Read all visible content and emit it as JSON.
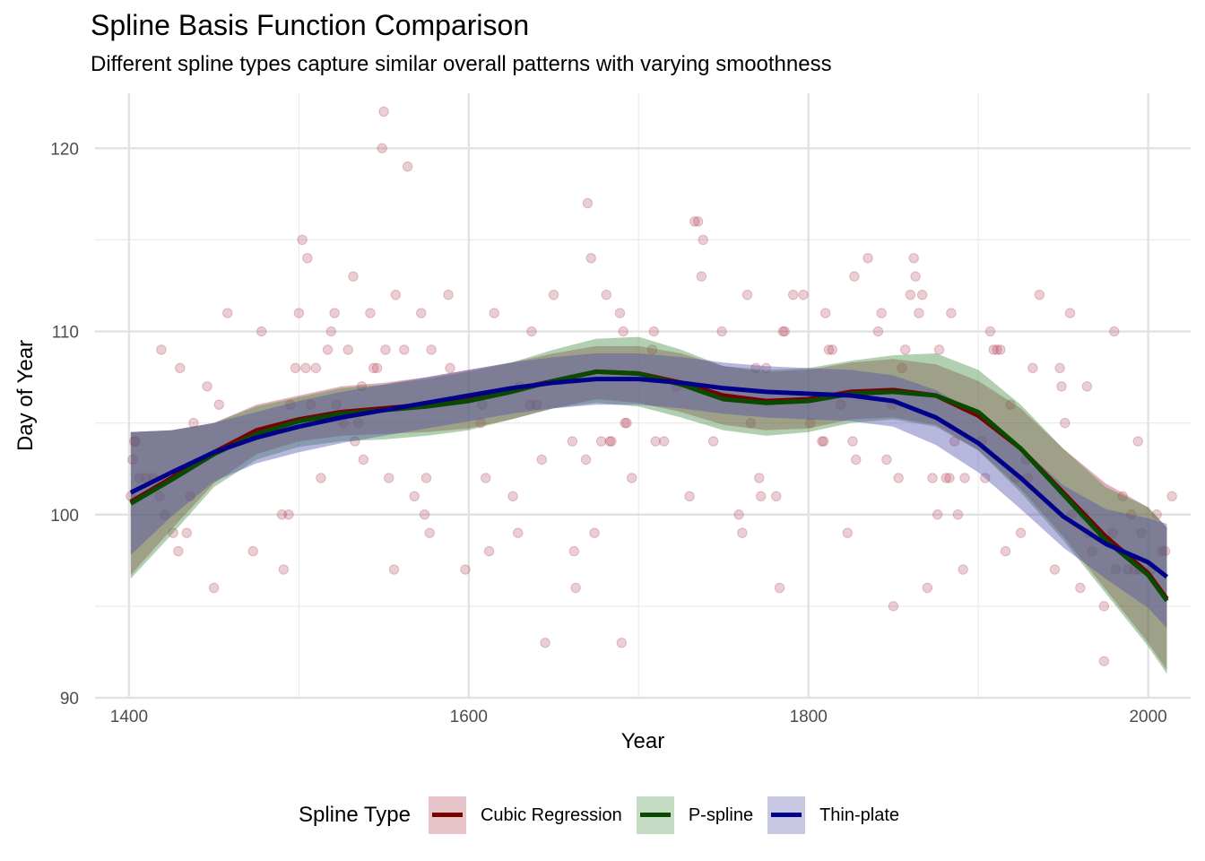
{
  "chart_data": {
    "type": "scatter",
    "title": "Spline Basis Function Comparison",
    "subtitle": "Different spline types capture similar overall patterns with varying smoothness",
    "xlabel": "Year",
    "ylabel": "Day of Year",
    "xlim": [
      1380,
      2025
    ],
    "ylim": [
      90,
      123
    ],
    "x_ticks": [
      1400,
      1600,
      1800,
      2000
    ],
    "y_ticks": [
      90,
      100,
      110,
      120
    ],
    "grid": true,
    "legend_position": "bottom",
    "legend_title": "Spline Type",
    "points_color": "#b03a50",
    "points": [
      [
        1401,
        101
      ],
      [
        1402,
        103
      ],
      [
        1403,
        104
      ],
      [
        1404,
        104
      ],
      [
        1406,
        102
      ],
      [
        1410,
        102
      ],
      [
        1414,
        102
      ],
      [
        1418,
        101
      ],
      [
        1419,
        109
      ],
      [
        1421,
        100
      ],
      [
        1426,
        99
      ],
      [
        1429,
        98
      ],
      [
        1430,
        108
      ],
      [
        1434,
        99
      ],
      [
        1436,
        101
      ],
      [
        1438,
        105
      ],
      [
        1446,
        107
      ],
      [
        1450,
        96
      ],
      [
        1453,
        106
      ],
      [
        1458,
        111
      ],
      [
        1473,
        98
      ],
      [
        1478,
        110
      ],
      [
        1490,
        100
      ],
      [
        1491,
        97
      ],
      [
        1494,
        100
      ],
      [
        1495,
        106
      ],
      [
        1498,
        108
      ],
      [
        1500,
        111
      ],
      [
        1502,
        115
      ],
      [
        1504,
        108
      ],
      [
        1505,
        114
      ],
      [
        1507,
        106
      ],
      [
        1510,
        108
      ],
      [
        1513,
        102
      ],
      [
        1517,
        109
      ],
      [
        1519,
        110
      ],
      [
        1521,
        111
      ],
      [
        1522,
        106
      ],
      [
        1526,
        105
      ],
      [
        1529,
        109
      ],
      [
        1532,
        113
      ],
      [
        1533,
        104
      ],
      [
        1535,
        105
      ],
      [
        1537,
        107
      ],
      [
        1538,
        103
      ],
      [
        1542,
        111
      ],
      [
        1544,
        108
      ],
      [
        1546,
        108
      ],
      [
        1549,
        120
      ],
      [
        1550,
        122
      ],
      [
        1551,
        109
      ],
      [
        1553,
        102
      ],
      [
        1556,
        97
      ],
      [
        1557,
        112
      ],
      [
        1562,
        109
      ],
      [
        1564,
        119
      ],
      [
        1568,
        101
      ],
      [
        1572,
        111
      ],
      [
        1574,
        100
      ],
      [
        1575,
        102
      ],
      [
        1577,
        99
      ],
      [
        1578,
        109
      ],
      [
        1588,
        112
      ],
      [
        1589,
        108
      ],
      [
        1598,
        97
      ],
      [
        1607,
        105
      ],
      [
        1608,
        106
      ],
      [
        1610,
        102
      ],
      [
        1612,
        98
      ],
      [
        1615,
        111
      ],
      [
        1626,
        101
      ],
      [
        1629,
        99
      ],
      [
        1630,
        107
      ],
      [
        1636,
        106
      ],
      [
        1637,
        110
      ],
      [
        1640,
        106
      ],
      [
        1643,
        103
      ],
      [
        1645,
        93
      ],
      [
        1650,
        112
      ],
      [
        1661,
        104
      ],
      [
        1662,
        98
      ],
      [
        1663,
        96
      ],
      [
        1669,
        103
      ],
      [
        1670,
        117
      ],
      [
        1672,
        114
      ],
      [
        1674,
        99
      ],
      [
        1678,
        104
      ],
      [
        1681,
        112
      ],
      [
        1683,
        104
      ],
      [
        1684,
        104
      ],
      [
        1689,
        111
      ],
      [
        1690,
        93
      ],
      [
        1691,
        110
      ],
      [
        1692,
        105
      ],
      [
        1693,
        105
      ],
      [
        1696,
        102
      ],
      [
        1708,
        109
      ],
      [
        1709,
        110
      ],
      [
        1710,
        104
      ],
      [
        1715,
        104
      ],
      [
        1722,
        107
      ],
      [
        1730,
        101
      ],
      [
        1733,
        116
      ],
      [
        1735,
        116
      ],
      [
        1737,
        113
      ],
      [
        1738,
        115
      ],
      [
        1744,
        104
      ],
      [
        1749,
        110
      ],
      [
        1759,
        100
      ],
      [
        1761,
        99
      ],
      [
        1764,
        112
      ],
      [
        1766,
        105
      ],
      [
        1769,
        108
      ],
      [
        1771,
        102
      ],
      [
        1772,
        101
      ],
      [
        1775,
        108
      ],
      [
        1781,
        101
      ],
      [
        1783,
        96
      ],
      [
        1785,
        110
      ],
      [
        1786,
        110
      ],
      [
        1791,
        112
      ],
      [
        1797,
        112
      ],
      [
        1801,
        105
      ],
      [
        1808,
        104
      ],
      [
        1809,
        104
      ],
      [
        1810,
        111
      ],
      [
        1812,
        109
      ],
      [
        1814,
        109
      ],
      [
        1819,
        106
      ],
      [
        1823,
        99
      ],
      [
        1826,
        104
      ],
      [
        1827,
        113
      ],
      [
        1828,
        103
      ],
      [
        1835,
        114
      ],
      [
        1841,
        110
      ],
      [
        1843,
        111
      ],
      [
        1846,
        103
      ],
      [
        1849,
        106
      ],
      [
        1850,
        95
      ],
      [
        1853,
        102
      ],
      [
        1855,
        108
      ],
      [
        1857,
        109
      ],
      [
        1860,
        112
      ],
      [
        1862,
        114
      ],
      [
        1863,
        113
      ],
      [
        1865,
        111
      ],
      [
        1867,
        112
      ],
      [
        1870,
        96
      ],
      [
        1873,
        102
      ],
      [
        1876,
        100
      ],
      [
        1877,
        109
      ],
      [
        1881,
        102
      ],
      [
        1883,
        102
      ],
      [
        1884,
        111
      ],
      [
        1886,
        104
      ],
      [
        1888,
        100
      ],
      [
        1891,
        97
      ],
      [
        1892,
        102
      ],
      [
        1902,
        104
      ],
      [
        1904,
        102
      ],
      [
        1907,
        110
      ],
      [
        1909,
        109
      ],
      [
        1911,
        109
      ],
      [
        1913,
        109
      ],
      [
        1916,
        98
      ],
      [
        1919,
        106
      ],
      [
        1922,
        102
      ],
      [
        1925,
        99
      ],
      [
        1928,
        103
      ],
      [
        1929,
        102
      ],
      [
        1932,
        108
      ],
      [
        1936,
        112
      ],
      [
        1945,
        97
      ],
      [
        1948,
        108
      ],
      [
        1949,
        107
      ],
      [
        1951,
        105
      ],
      [
        1954,
        111
      ],
      [
        1955,
        100
      ],
      [
        1960,
        96
      ],
      [
        1962,
        100
      ],
      [
        1964,
        107
      ],
      [
        1965,
        99
      ],
      [
        1967,
        98
      ],
      [
        1974,
        95
      ],
      [
        1974,
        92
      ],
      [
        1979,
        99
      ],
      [
        1980,
        110
      ],
      [
        1981,
        97
      ],
      [
        1985,
        101
      ],
      [
        1988,
        97
      ],
      [
        1990,
        100
      ],
      [
        1992,
        97
      ],
      [
        1994,
        104
      ],
      [
        1995,
        97
      ],
      [
        1996,
        99
      ],
      [
        2002,
        97
      ],
      [
        2005,
        100
      ],
      [
        2008,
        98
      ],
      [
        2010,
        98
      ],
      [
        2014,
        101
      ]
    ],
    "series": [
      {
        "name": "Cubic Regression",
        "color": "#7a0000",
        "fill": "#b03a50",
        "x": [
          1401,
          1425,
          1450,
          1475,
          1500,
          1525,
          1550,
          1575,
          1600,
          1625,
          1650,
          1675,
          1700,
          1725,
          1750,
          1775,
          1800,
          1825,
          1850,
          1875,
          1900,
          1925,
          1950,
          1975,
          2000,
          2011
        ],
        "fit": [
          100.7,
          102.0,
          103.4,
          104.6,
          105.2,
          105.6,
          105.8,
          106.0,
          106.3,
          106.8,
          107.3,
          107.8,
          107.7,
          107.2,
          106.5,
          106.2,
          106.3,
          106.7,
          106.8,
          106.5,
          105.4,
          103.6,
          101.2,
          98.8,
          96.8,
          95.4
        ],
        "lower": [
          96.7,
          99.2,
          101.7,
          103.3,
          104.0,
          104.3,
          104.4,
          104.5,
          104.7,
          105.2,
          105.8,
          106.3,
          106.1,
          105.6,
          104.9,
          104.6,
          104.7,
          105.2,
          105.3,
          104.9,
          103.5,
          101.4,
          98.8,
          95.9,
          93.0,
          91.5
        ],
        "upper": [
          104.5,
          104.6,
          105.0,
          106.0,
          106.5,
          107.0,
          107.2,
          107.5,
          107.9,
          108.3,
          108.8,
          109.2,
          109.2,
          108.8,
          108.1,
          107.8,
          107.9,
          108.3,
          108.5,
          108.2,
          107.3,
          105.8,
          103.6,
          101.7,
          100.4,
          99.3
        ]
      },
      {
        "name": "P-spline",
        "color": "#0a4a00",
        "fill": "#3d8a3d",
        "x": [
          1401,
          1425,
          1450,
          1475,
          1500,
          1525,
          1550,
          1575,
          1600,
          1625,
          1650,
          1675,
          1700,
          1725,
          1750,
          1775,
          1800,
          1825,
          1850,
          1875,
          1900,
          1925,
          1950,
          1975,
          2000,
          2011
        ],
        "fit": [
          100.6,
          101.9,
          103.3,
          104.4,
          105.1,
          105.5,
          105.7,
          105.9,
          106.2,
          106.7,
          107.3,
          107.8,
          107.7,
          107.1,
          106.3,
          106.1,
          106.2,
          106.6,
          106.7,
          106.5,
          105.6,
          103.6,
          101.1,
          98.6,
          96.7,
          95.3
        ],
        "lower": [
          96.5,
          98.9,
          101.5,
          103.0,
          103.7,
          104.0,
          104.1,
          104.3,
          104.6,
          105.2,
          105.8,
          106.1,
          105.9,
          105.3,
          104.6,
          104.3,
          104.5,
          105.0,
          105.2,
          104.8,
          103.5,
          101.2,
          98.6,
          95.7,
          92.8,
          91.3
        ],
        "upper": [
          104.5,
          104.6,
          105.0,
          105.9,
          106.4,
          106.9,
          107.1,
          107.4,
          107.8,
          108.3,
          109.0,
          109.6,
          109.7,
          109.0,
          108.1,
          107.9,
          108.0,
          108.4,
          108.7,
          108.8,
          107.9,
          106.0,
          103.6,
          101.5,
          100.4,
          99.3
        ]
      },
      {
        "name": "Thin-plate",
        "color": "#00008b",
        "fill": "#4a4aaa",
        "x": [
          1401,
          1425,
          1450,
          1475,
          1500,
          1525,
          1550,
          1575,
          1600,
          1625,
          1650,
          1675,
          1700,
          1725,
          1750,
          1775,
          1800,
          1825,
          1850,
          1875,
          1900,
          1925,
          1950,
          1975,
          2000,
          2011
        ],
        "fit": [
          101.2,
          102.3,
          103.4,
          104.2,
          104.8,
          105.3,
          105.7,
          106.1,
          106.5,
          106.9,
          107.2,
          107.4,
          107.4,
          107.2,
          106.9,
          106.7,
          106.6,
          106.5,
          106.2,
          105.3,
          103.9,
          102.0,
          99.9,
          98.4,
          97.4,
          96.6
        ],
        "lower": [
          97.8,
          99.9,
          101.8,
          102.8,
          103.4,
          103.9,
          104.3,
          104.7,
          105.1,
          105.5,
          105.8,
          106.0,
          106.0,
          105.8,
          105.5,
          105.3,
          105.2,
          105.1,
          104.8,
          103.8,
          102.3,
          100.3,
          98.2,
          96.5,
          94.9,
          93.8
        ],
        "upper": [
          104.5,
          104.6,
          105.0,
          105.6,
          106.2,
          106.7,
          107.1,
          107.5,
          107.9,
          108.3,
          108.6,
          108.8,
          108.8,
          108.6,
          108.3,
          108.1,
          108.0,
          107.9,
          107.6,
          106.8,
          105.5,
          103.7,
          101.6,
          100.3,
          99.8,
          99.5
        ]
      }
    ]
  }
}
